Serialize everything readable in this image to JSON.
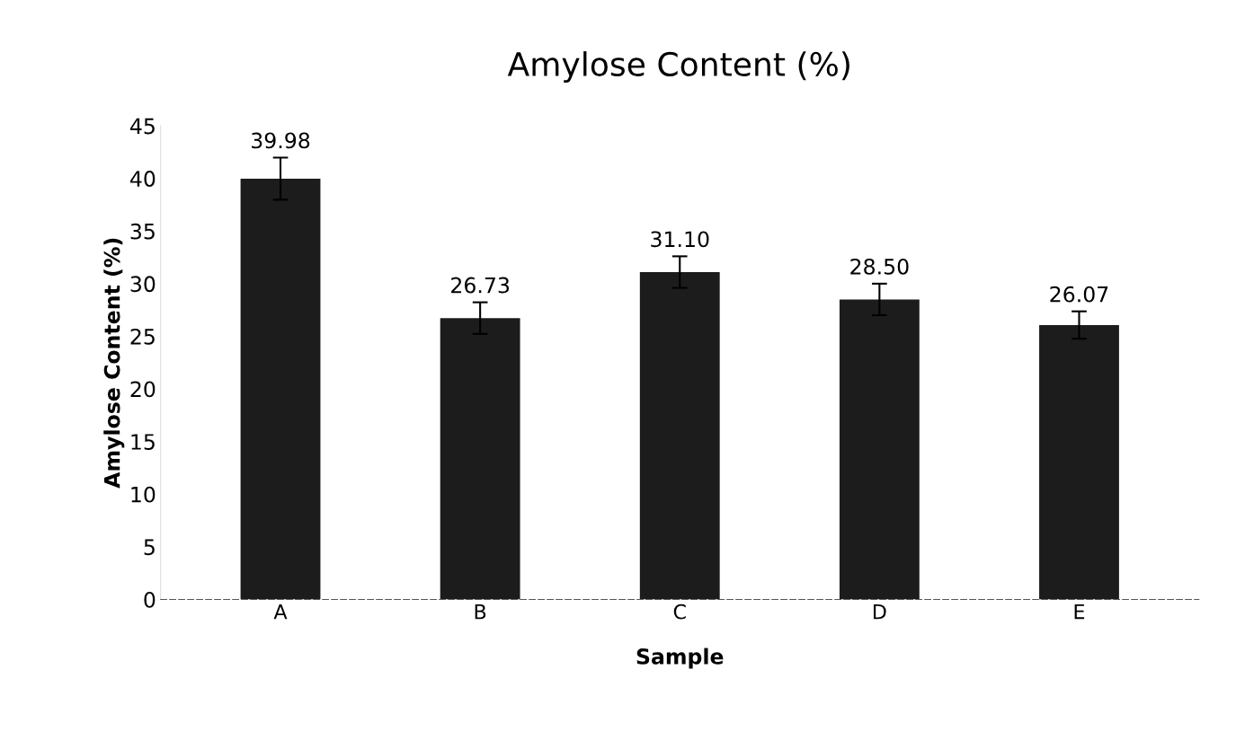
{
  "chart_data": {
    "type": "bar",
    "title": "Amylose Content (%)",
    "xlabel": "Sample",
    "ylabel": "Amylose Content (%)",
    "categories": [
      "A",
      "B",
      "C",
      "D",
      "E"
    ],
    "values": [
      39.98,
      26.73,
      31.1,
      28.5,
      26.07
    ],
    "value_labels": [
      "39.98",
      "26.73",
      "31.10",
      "28.50",
      "26.07"
    ],
    "errors": [
      2.0,
      1.5,
      1.5,
      1.5,
      1.3
    ],
    "color": "#1c1c1c",
    "ylim": [
      0,
      45
    ],
    "yticks": [
      0,
      5,
      10,
      15,
      20,
      25,
      30,
      35,
      40,
      45
    ],
    "grid": false,
    "legend": false
  }
}
